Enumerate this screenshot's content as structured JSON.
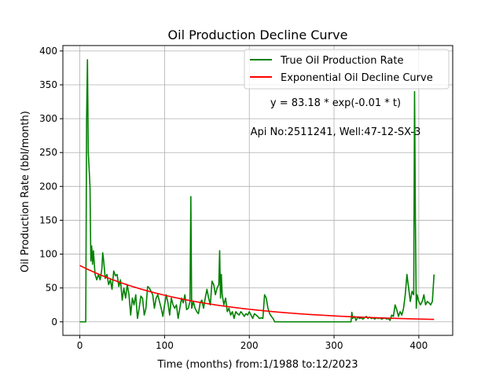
{
  "chart_data": {
    "type": "line",
    "title": "Oil Production Decline Curve",
    "xlabel": "Time (months) from:1/1988 to:12/2023",
    "ylabel": "Oil Production Rate (bbl/month)",
    "xlim": [
      -20,
      440
    ],
    "ylim": [
      -20,
      408
    ],
    "xticks": [
      0,
      100,
      200,
      300,
      400
    ],
    "yticks": [
      0,
      50,
      100,
      150,
      200,
      250,
      300,
      350,
      400
    ],
    "grid": true,
    "legend_position": "top-right",
    "annotations": [
      {
        "text": "y = 83.18 * exp(-0.01 * t)"
      },
      {
        "text": "Api No:2511241, Well:47-12-SX-3"
      }
    ],
    "series": [
      {
        "name": "True Oil Production Rate",
        "color": "#008000",
        "style": "line",
        "points": [
          [
            0,
            0
          ],
          [
            7,
            0
          ],
          [
            8,
            300
          ],
          [
            9,
            387
          ],
          [
            10,
            250
          ],
          [
            12,
            200
          ],
          [
            13,
            90
          ],
          [
            14,
            112
          ],
          [
            15,
            85
          ],
          [
            16,
            105
          ],
          [
            18,
            70
          ],
          [
            20,
            62
          ],
          [
            22,
            70
          ],
          [
            24,
            62
          ],
          [
            26,
            78
          ],
          [
            27,
            102
          ],
          [
            28,
            92
          ],
          [
            30,
            64
          ],
          [
            32,
            70
          ],
          [
            34,
            55
          ],
          [
            36,
            62
          ],
          [
            38,
            48
          ],
          [
            40,
            75
          ],
          [
            42,
            68
          ],
          [
            44,
            70
          ],
          [
            46,
            52
          ],
          [
            48,
            62
          ],
          [
            50,
            32
          ],
          [
            52,
            50
          ],
          [
            54,
            35
          ],
          [
            56,
            55
          ],
          [
            58,
            40
          ],
          [
            60,
            10
          ],
          [
            62,
            35
          ],
          [
            64,
            25
          ],
          [
            66,
            40
          ],
          [
            68,
            5
          ],
          [
            70,
            20
          ],
          [
            72,
            38
          ],
          [
            74,
            35
          ],
          [
            76,
            10
          ],
          [
            78,
            20
          ],
          [
            80,
            52
          ],
          [
            82,
            50
          ],
          [
            84,
            45
          ],
          [
            86,
            40
          ],
          [
            88,
            20
          ],
          [
            90,
            35
          ],
          [
            92,
            40
          ],
          [
            94,
            30
          ],
          [
            96,
            20
          ],
          [
            98,
            8
          ],
          [
            100,
            25
          ],
          [
            102,
            40
          ],
          [
            104,
            28
          ],
          [
            106,
            10
          ],
          [
            108,
            35
          ],
          [
            110,
            25
          ],
          [
            112,
            20
          ],
          [
            114,
            25
          ],
          [
            116,
            5
          ],
          [
            118,
            20
          ],
          [
            120,
            35
          ],
          [
            122,
            28
          ],
          [
            124,
            40
          ],
          [
            126,
            18
          ],
          [
            128,
            20
          ],
          [
            130,
            30
          ],
          [
            131,
            185
          ],
          [
            132,
            20
          ],
          [
            134,
            30
          ],
          [
            136,
            20
          ],
          [
            138,
            15
          ],
          [
            140,
            12
          ],
          [
            142,
            28
          ],
          [
            144,
            32
          ],
          [
            146,
            20
          ],
          [
            148,
            35
          ],
          [
            150,
            48
          ],
          [
            152,
            35
          ],
          [
            154,
            25
          ],
          [
            156,
            60
          ],
          [
            158,
            55
          ],
          [
            160,
            40
          ],
          [
            162,
            50
          ],
          [
            164,
            55
          ],
          [
            165,
            105
          ],
          [
            166,
            35
          ],
          [
            167,
            70
          ],
          [
            168,
            40
          ],
          [
            170,
            25
          ],
          [
            172,
            35
          ],
          [
            174,
            15
          ],
          [
            176,
            20
          ],
          [
            178,
            10
          ],
          [
            180,
            15
          ],
          [
            182,
            5
          ],
          [
            184,
            15
          ],
          [
            186,
            12
          ],
          [
            188,
            10
          ],
          [
            190,
            15
          ],
          [
            192,
            12
          ],
          [
            194,
            8
          ],
          [
            196,
            12
          ],
          [
            198,
            10
          ],
          [
            200,
            15
          ],
          [
            202,
            10
          ],
          [
            204,
            5
          ],
          [
            206,
            12
          ],
          [
            208,
            10
          ],
          [
            210,
            8
          ],
          [
            212,
            5
          ],
          [
            214,
            6
          ],
          [
            216,
            5
          ],
          [
            218,
            40
          ],
          [
            220,
            35
          ],
          [
            222,
            20
          ],
          [
            224,
            12
          ],
          [
            226,
            8
          ],
          [
            228,
            5
          ],
          [
            230,
            0
          ],
          [
            240,
            0
          ],
          [
            250,
            0
          ],
          [
            260,
            0
          ],
          [
            270,
            0
          ],
          [
            280,
            0
          ],
          [
            290,
            0
          ],
          [
            300,
            0
          ],
          [
            310,
            0
          ],
          [
            320,
            0
          ],
          [
            321,
            14
          ],
          [
            322,
            5
          ],
          [
            324,
            8
          ],
          [
            326,
            2
          ],
          [
            328,
            7
          ],
          [
            330,
            5
          ],
          [
            332,
            6
          ],
          [
            334,
            4
          ],
          [
            336,
            6
          ],
          [
            338,
            8
          ],
          [
            340,
            5
          ],
          [
            342,
            7
          ],
          [
            344,
            5
          ],
          [
            346,
            6
          ],
          [
            348,
            4
          ],
          [
            350,
            6
          ],
          [
            352,
            5
          ],
          [
            354,
            6
          ],
          [
            356,
            4
          ],
          [
            358,
            5
          ],
          [
            360,
            6
          ],
          [
            362,
            4
          ],
          [
            364,
            5
          ],
          [
            366,
            2
          ],
          [
            368,
            10
          ],
          [
            370,
            8
          ],
          [
            372,
            25
          ],
          [
            374,
            18
          ],
          [
            376,
            8
          ],
          [
            378,
            15
          ],
          [
            380,
            10
          ],
          [
            382,
            20
          ],
          [
            384,
            40
          ],
          [
            386,
            70
          ],
          [
            388,
            50
          ],
          [
            390,
            30
          ],
          [
            392,
            45
          ],
          [
            394,
            40
          ],
          [
            395,
            340
          ],
          [
            396,
            150
          ],
          [
            397,
            20
          ],
          [
            398,
            40
          ],
          [
            400,
            30
          ],
          [
            402,
            25
          ],
          [
            404,
            30
          ],
          [
            406,
            40
          ],
          [
            408,
            25
          ],
          [
            410,
            30
          ],
          [
            412,
            28
          ],
          [
            414,
            25
          ],
          [
            416,
            30
          ],
          [
            418,
            70
          ]
        ]
      },
      {
        "name": "Exponential Oil Decline Curve",
        "color": "#ff0000",
        "style": "line",
        "function": "83.18 * exp(-0.0075 * t)",
        "x_range": [
          0,
          418
        ]
      }
    ]
  }
}
